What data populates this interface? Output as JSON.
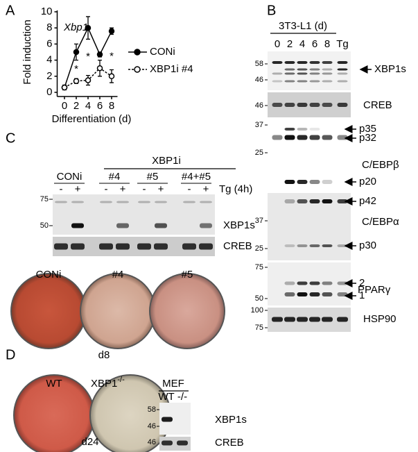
{
  "panel_labels": [
    "A",
    "B",
    "C",
    "D"
  ],
  "chart_data": {
    "type": "line",
    "annotation_title": "Xbp1",
    "x_label": "Differentiation (d)",
    "y_label": "Fold induction",
    "x": [
      0,
      2,
      4,
      6,
      8
    ],
    "xlim": [
      -1,
      9
    ],
    "xticks": [
      0,
      2,
      4,
      6,
      8
    ],
    "ylim": [
      0,
      10
    ],
    "yticks": [
      0,
      2,
      4,
      6,
      8,
      10
    ],
    "series": [
      {
        "name": "CONi",
        "color": "#000000",
        "style": "solid",
        "marker": "filled",
        "values": [
          0.6,
          5,
          8,
          4.7,
          7.6
        ],
        "errors": [
          0.3,
          1,
          1.4,
          0.3,
          0.4
        ]
      },
      {
        "name": "XBP1i #4",
        "color": "#000000",
        "style": "dashed",
        "marker": "open",
        "values": [
          0.6,
          1.4,
          1.5,
          3,
          2
        ],
        "errors": [
          0.2,
          0.3,
          0.6,
          1,
          0.8
        ]
      }
    ],
    "annotations": [
      {
        "text": "*",
        "x": 2
      },
      {
        "text": "*",
        "x": 4
      },
      {
        "text": "*",
        "x": 8
      }
    ]
  },
  "panel_b": {
    "header": "3T3-L1 (d)",
    "lanes": [
      "0",
      "2",
      "4",
      "6",
      "8",
      "Tg"
    ],
    "blots": [
      {
        "markers": [
          "58",
          "46"
        ],
        "labels": [
          "XBP1s"
        ]
      },
      {
        "markers": [
          "46"
        ],
        "labels": [
          "CREB"
        ]
      },
      {
        "markers": [
          "37",
          "25"
        ],
        "labels": [
          "p35",
          "p32",
          "C/EBPβ",
          "p20"
        ]
      },
      {
        "markers": [
          "37",
          "25"
        ],
        "labels": [
          "p42",
          "C/EBPα",
          "p30"
        ]
      },
      {
        "markers": [
          "75",
          "50"
        ],
        "labels": [
          "2",
          "PPARγ",
          "1"
        ]
      },
      {
        "markers": [
          "100",
          "75"
        ],
        "labels": [
          "HSP90"
        ]
      }
    ]
  },
  "panel_c": {
    "group_header": "XBP1i",
    "groups": [
      "CONi",
      "#4",
      "#5",
      "#4+#5"
    ],
    "treatment_signs": [
      "-",
      "+",
      "-",
      "+",
      "-",
      "+",
      "-",
      "+"
    ],
    "treatment": "Tg (4h)",
    "blots": [
      {
        "markers": [
          "75",
          "50"
        ],
        "label": "XBP1s"
      },
      {
        "markers": [],
        "label": "CREB"
      }
    ],
    "dishes": [
      "CONi",
      "#4",
      "#5"
    ],
    "day": "d8"
  },
  "panel_d": {
    "dishes": [
      "WT",
      "XBP1"
    ],
    "superscript": "-/-",
    "day": "d24",
    "blot_header": "MEF",
    "lanes": [
      "WT",
      "-/-"
    ],
    "blots": [
      {
        "markers": [
          "58",
          "46"
        ],
        "label": "XBP1s"
      },
      {
        "markers": [
          "46"
        ],
        "label": "CREB"
      }
    ]
  }
}
